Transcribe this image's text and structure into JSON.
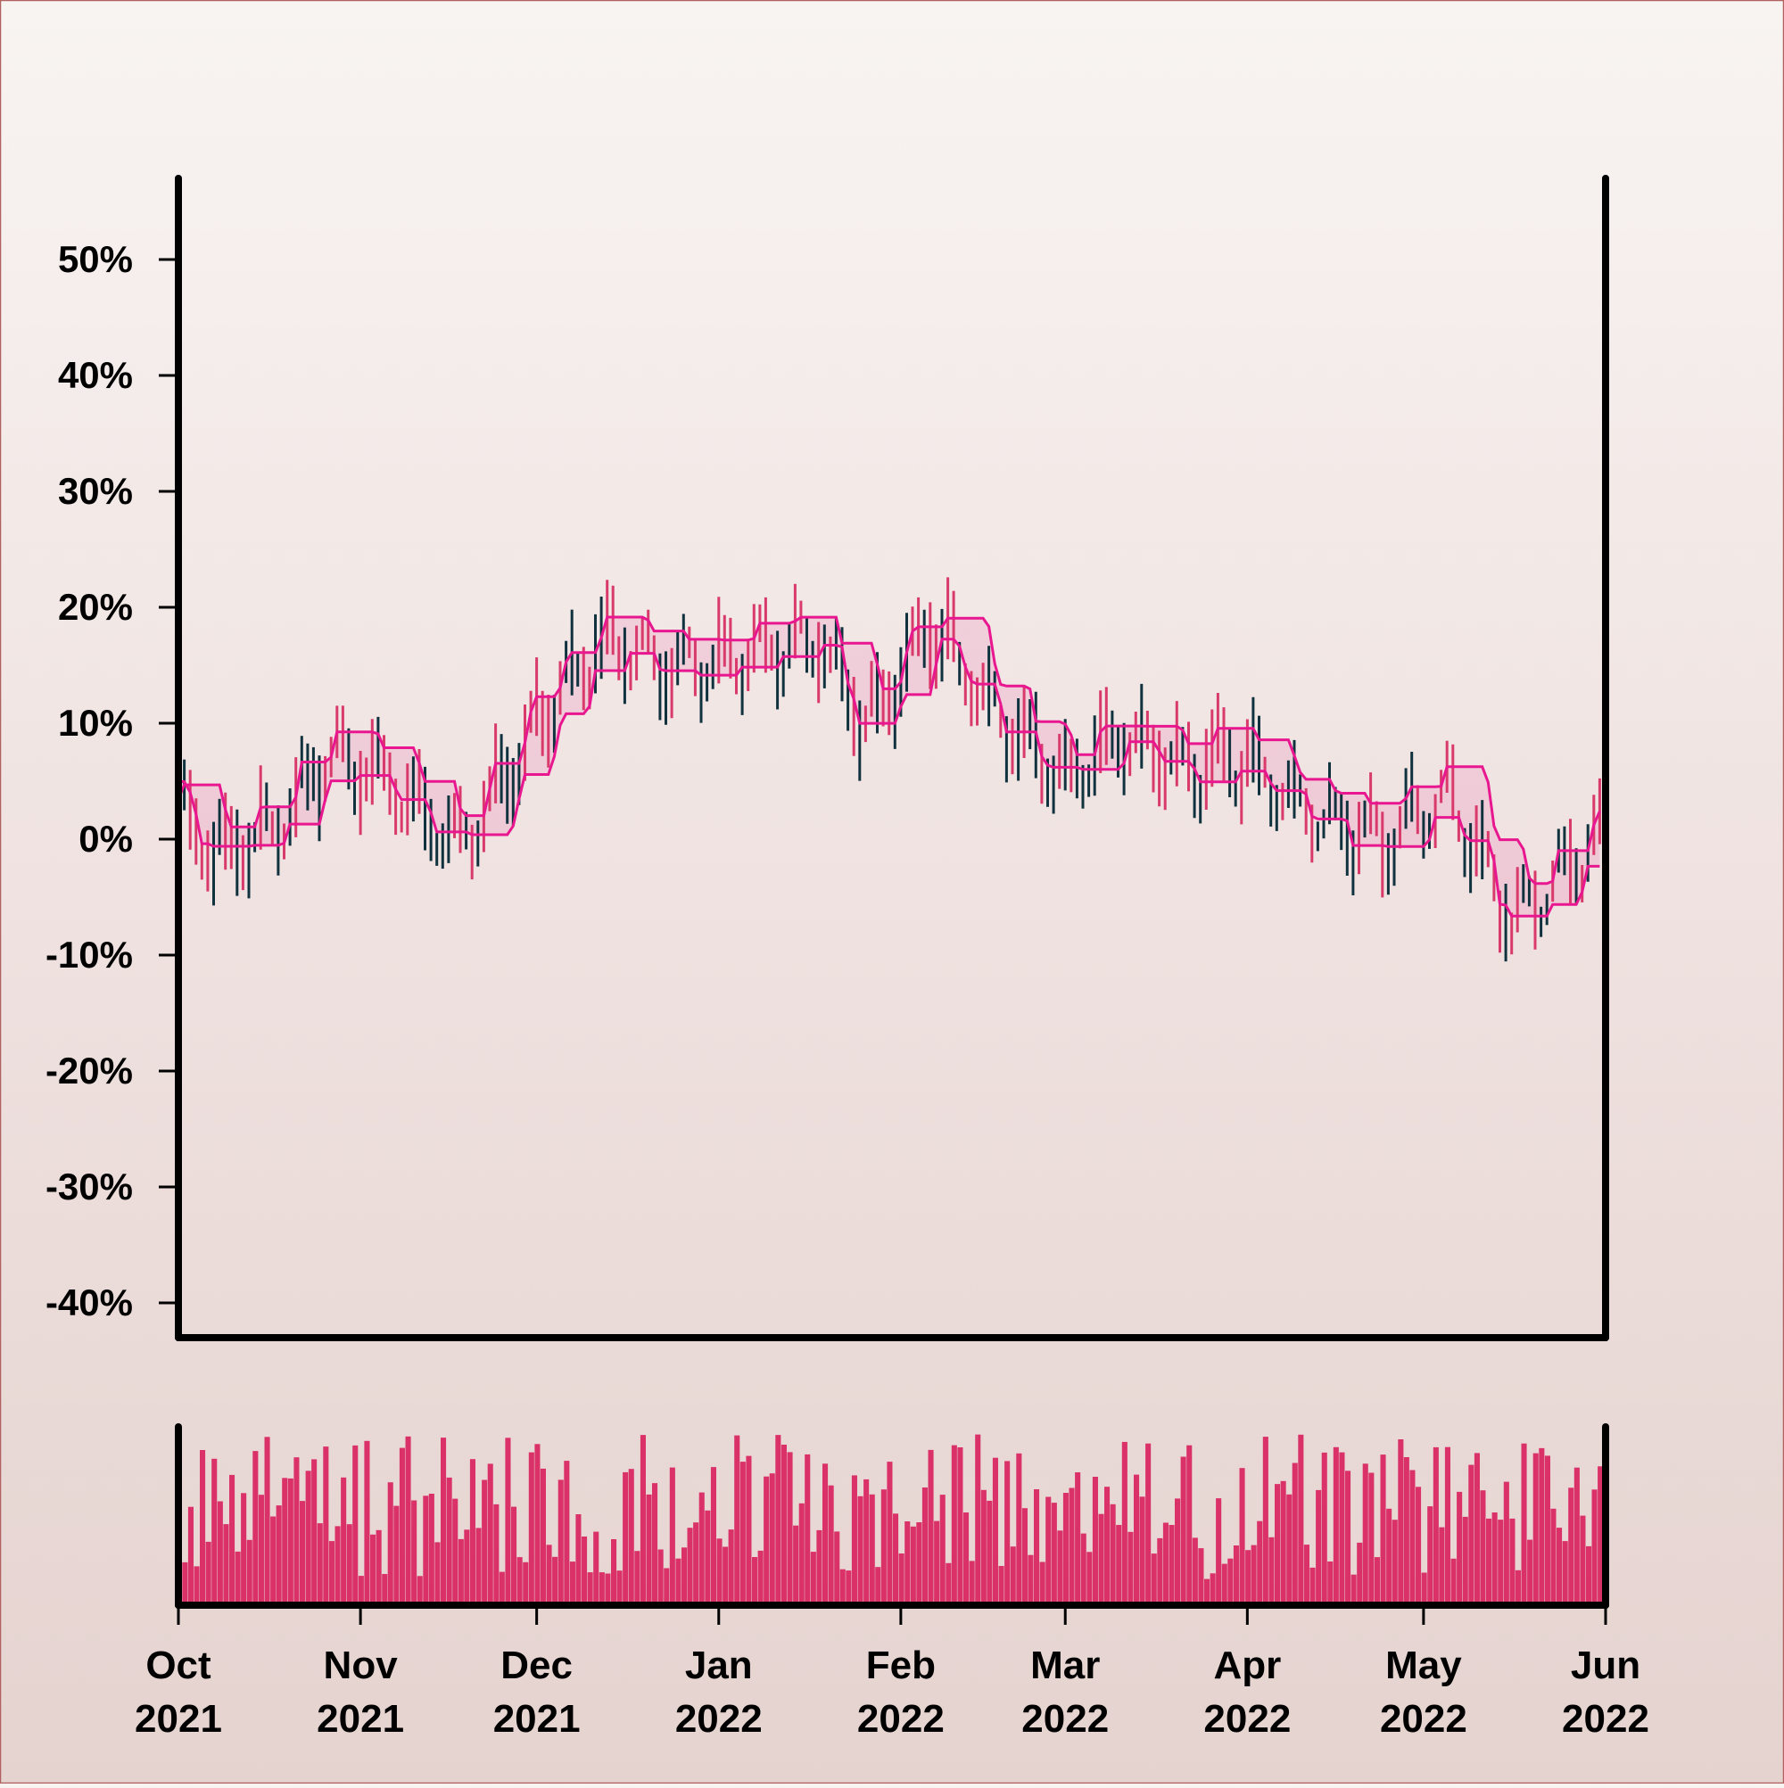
{
  "chart_data": {
    "type": "ohlc",
    "title": "",
    "xlabel": "",
    "ylabel": "",
    "ylim": [
      -0.43,
      0.57
    ],
    "y_ticks": [
      -0.4,
      -0.3,
      -0.2,
      -0.1,
      0.0,
      0.1,
      0.2,
      0.3,
      0.4,
      0.5
    ],
    "y_tick_labels": [
      "-40%",
      "-30%",
      "-20%",
      "-10%",
      "0%",
      "10%",
      "20%",
      "30%",
      "40%",
      "50%"
    ],
    "x_range": [
      "2021-10-01",
      "2022-06-01"
    ],
    "x_ticks": [
      {
        "date": "2021-10-01",
        "month": "Oct",
        "year": "2021"
      },
      {
        "date": "2021-11-01",
        "month": "Nov",
        "year": "2021"
      },
      {
        "date": "2021-12-01",
        "month": "Dec",
        "year": "2021"
      },
      {
        "date": "2022-01-01",
        "month": "Jan",
        "year": "2022"
      },
      {
        "date": "2022-02-01",
        "month": "Feb",
        "year": "2022"
      },
      {
        "date": "2022-03-01",
        "month": "Mar",
        "year": "2022"
      },
      {
        "date": "2022-04-01",
        "month": "Apr",
        "year": "2022"
      },
      {
        "date": "2022-05-01",
        "month": "May",
        "year": "2022"
      },
      {
        "date": "2022-06-01",
        "month": "Jun",
        "year": "2022"
      }
    ],
    "trend_anchors": [
      {
        "date": "2021-10-01",
        "value": 0.03
      },
      {
        "date": "2021-10-05",
        "value": 0.0
      },
      {
        "date": "2021-10-10",
        "value": -0.01
      },
      {
        "date": "2021-10-18",
        "value": 0.01
      },
      {
        "date": "2021-10-26",
        "value": 0.07
      },
      {
        "date": "2021-11-04",
        "value": 0.06
      },
      {
        "date": "2021-11-16",
        "value": 0.0
      },
      {
        "date": "2021-11-22",
        "value": 0.02
      },
      {
        "date": "2021-12-01",
        "value": 0.1
      },
      {
        "date": "2021-12-12",
        "value": 0.17
      },
      {
        "date": "2021-12-25",
        "value": 0.15
      },
      {
        "date": "2022-01-08",
        "value": 0.16
      },
      {
        "date": "2022-01-18",
        "value": 0.17
      },
      {
        "date": "2022-01-26",
        "value": 0.1
      },
      {
        "date": "2022-02-06",
        "value": 0.18
      },
      {
        "date": "2022-02-16",
        "value": 0.12
      },
      {
        "date": "2022-03-01",
        "value": 0.05
      },
      {
        "date": "2022-03-10",
        "value": 0.09
      },
      {
        "date": "2022-03-22",
        "value": 0.06
      },
      {
        "date": "2022-04-01",
        "value": 0.07
      },
      {
        "date": "2022-04-12",
        "value": 0.02
      },
      {
        "date": "2022-04-25",
        "value": 0.0
      },
      {
        "date": "2022-05-05",
        "value": 0.04
      },
      {
        "date": "2022-05-16",
        "value": -0.07
      },
      {
        "date": "2022-05-21",
        "value": -0.05
      },
      {
        "date": "2022-06-01",
        "value": 0.01
      }
    ],
    "wave": {
      "amplitude": 0.022,
      "period_days": 6.5
    },
    "band_window_days": 7,
    "volume_scale": [
      0,
      1
    ],
    "colors": {
      "up": "#10323f",
      "down": "#d93a6c",
      "band_line": "#e8178f",
      "band_fill": "#e8178f",
      "volume": "#da3169",
      "axis": "#000000"
    }
  }
}
